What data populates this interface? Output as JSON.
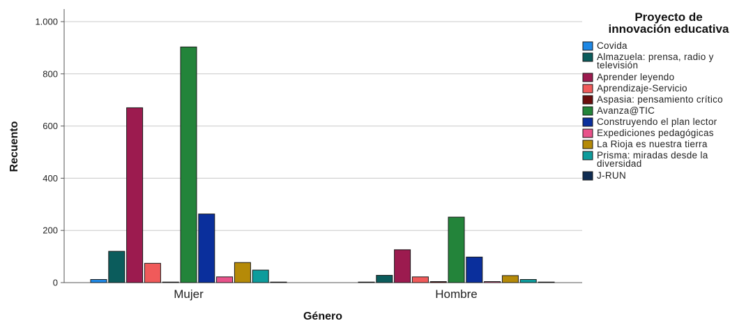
{
  "chart_data": {
    "type": "bar",
    "xlabel": "Género",
    "ylabel": "Recuento",
    "ylim": [
      0,
      1000
    ],
    "yticks": [
      0,
      200,
      400,
      600,
      800,
      1000
    ],
    "ytick_labels": [
      "0",
      "200",
      "400",
      "600",
      "800",
      "1.000"
    ],
    "grid": "horizontal",
    "legend_title": [
      "Proyecto de",
      "innovación educativa"
    ],
    "legend_position": "right",
    "categories": [
      "Mujer",
      "Hombre"
    ],
    "series": [
      {
        "name": [
          "Covida"
        ],
        "color": "#1e88e5",
        "values": [
          12,
          0
        ]
      },
      {
        "name": [
          "Almazuela: prensa, radio y",
          "televisión"
        ],
        "color": "#0b5c5c",
        "values": [
          120,
          28
        ]
      },
      {
        "name": [
          "Aprender leyendo"
        ],
        "color": "#9c1b4f",
        "values": [
          670,
          126
        ]
      },
      {
        "name": [
          "Aprendizaje-Servicio"
        ],
        "color": "#f05a5a",
        "values": [
          74,
          22
        ]
      },
      {
        "name": [
          "Aspasia: pensamiento crítico"
        ],
        "color": "#6b0d0d",
        "values": [
          2,
          4
        ]
      },
      {
        "name": [
          "Avanza@TIC"
        ],
        "color": "#23843a",
        "values": [
          903,
          251
        ]
      },
      {
        "name": [
          "Construyendo el plan lector"
        ],
        "color": "#0a2f9c",
        "values": [
          263,
          98
        ]
      },
      {
        "name": [
          "Expediciones pedagógicas"
        ],
        "color": "#e8528a",
        "values": [
          22,
          4
        ]
      },
      {
        "name": [
          "La Rioja es nuestra tierra"
        ],
        "color": "#b58a08",
        "values": [
          77,
          27
        ]
      },
      {
        "name": [
          "Prisma: miradas desde la",
          "diversidad"
        ],
        "color": "#0e9c9c",
        "values": [
          48,
          12
        ]
      },
      {
        "name": [
          "J-RUN"
        ],
        "color": "#0f2c52",
        "values": [
          1,
          1
        ]
      }
    ]
  }
}
